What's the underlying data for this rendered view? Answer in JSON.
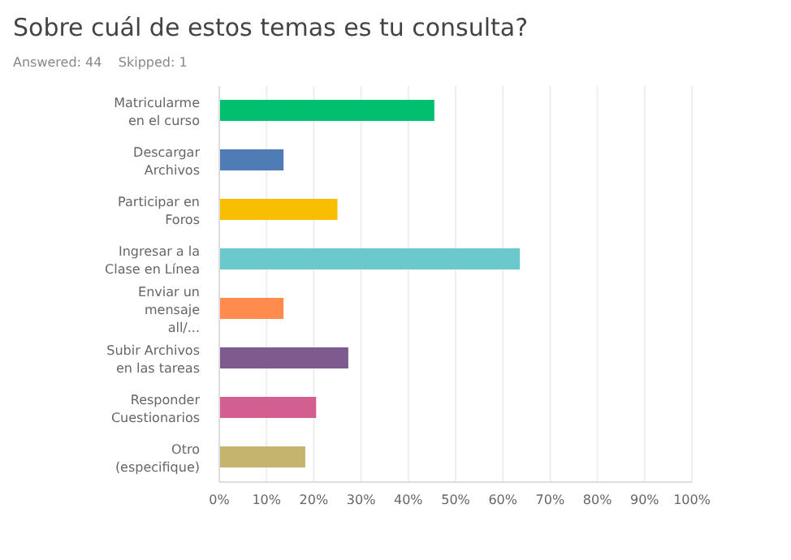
{
  "chart_data": {
    "type": "bar",
    "orientation": "horizontal",
    "title": "Sobre cuál de estos temas es tu consulta?",
    "subtitle": "Answered: 44    Skipped: 1",
    "categories": [
      "Matricularme en el curso",
      "Descargar Archivos",
      "Participar en Foros",
      "Ingresar a la Clase en Línea",
      "Enviar un mensaje all/...",
      "Subir Archivos en las tareas",
      "Responder Cuestionarios",
      "Otro (especifique)"
    ],
    "values": [
      45.5,
      13.6,
      25.0,
      63.6,
      13.6,
      27.3,
      20.5,
      18.2
    ],
    "colors": [
      "#00bf6f",
      "#507cb6",
      "#f9be00",
      "#6bc8cd",
      "#ff8b4f",
      "#7d5b8f",
      "#d25f90",
      "#c5b46e"
    ],
    "xlim": [
      0,
      100
    ],
    "xticks": [
      {
        "value": 0,
        "label": "0%"
      },
      {
        "value": 10,
        "label": "10%"
      },
      {
        "value": 20,
        "label": "20%"
      },
      {
        "value": 30,
        "label": "30%"
      },
      {
        "value": 40,
        "label": "40%"
      },
      {
        "value": 50,
        "label": "50%"
      },
      {
        "value": 60,
        "label": "60%"
      },
      {
        "value": 70,
        "label": "70%"
      },
      {
        "value": 80,
        "label": "80%"
      },
      {
        "value": 90,
        "label": "90%"
      },
      {
        "value": 100,
        "label": "100%"
      }
    ],
    "grid": "x"
  }
}
